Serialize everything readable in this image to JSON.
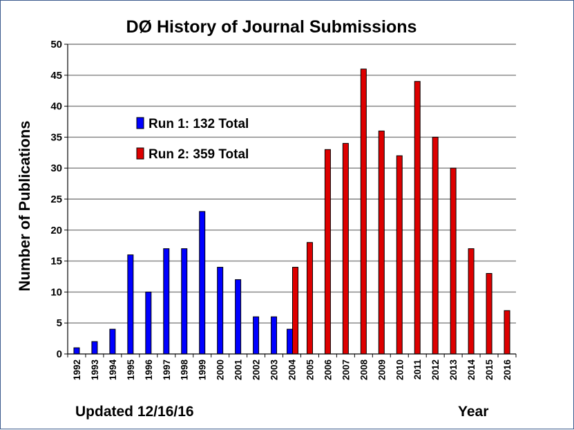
{
  "chart_data": {
    "type": "bar",
    "title": "DØ History of Journal Submissions",
    "xlabel": "Year",
    "ylabel": "Number of Publications",
    "ylim": [
      0,
      50
    ],
    "yticks": [
      0,
      5,
      10,
      15,
      20,
      25,
      30,
      35,
      40,
      45,
      50
    ],
    "grid": true,
    "legend_position": "upper-left",
    "categories": [
      "1992",
      "1993",
      "1994",
      "1995",
      "1996",
      "1997",
      "1998",
      "1999",
      "2000",
      "2001",
      "2002",
      "2003",
      "2004",
      "2005",
      "2006",
      "2007",
      "2008",
      "2009",
      "2010",
      "2011",
      "2012",
      "2013",
      "2014",
      "2015",
      "2016"
    ],
    "series": [
      {
        "name": "Run 1: 132 Total",
        "color": "#0000ff",
        "values": [
          1,
          2,
          4,
          16,
          10,
          17,
          17,
          23,
          14,
          12,
          6,
          6,
          4,
          null,
          null,
          null,
          null,
          null,
          null,
          null,
          null,
          null,
          null,
          null,
          null
        ]
      },
      {
        "name": "Run 2: 359 Total",
        "color": "#dd0000",
        "values": [
          null,
          null,
          null,
          null,
          null,
          null,
          null,
          null,
          null,
          null,
          null,
          null,
          14,
          18,
          33,
          34,
          46,
          36,
          32,
          44,
          35,
          30,
          17,
          13,
          7
        ]
      }
    ],
    "footnote": "Updated 12/16/16"
  }
}
